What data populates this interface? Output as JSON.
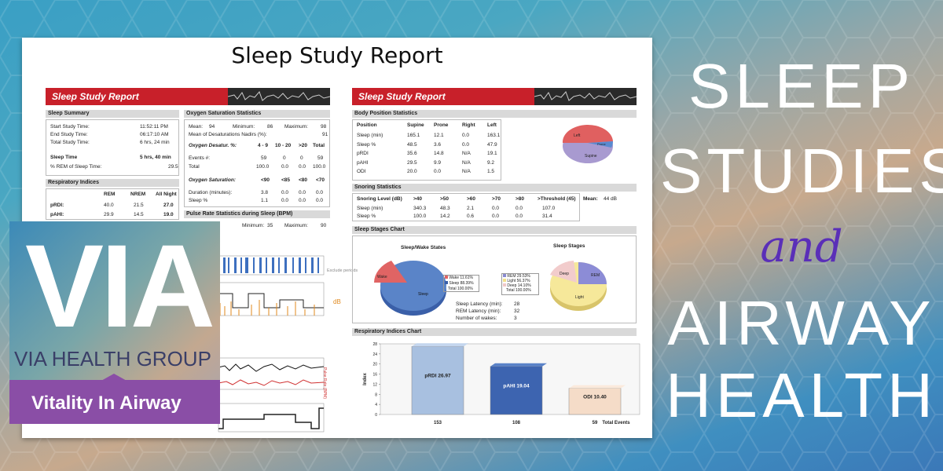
{
  "report": {
    "title": "Sleep Study Report",
    "banner": "Sleep Study Report",
    "left": {
      "sleep_summary": {
        "heading": "Sleep Summary",
        "rows": [
          {
            "label": "Start Study Time:",
            "value": "11:52:11 PM"
          },
          {
            "label": "End Study Time:",
            "value": "06:17:10 AM"
          },
          {
            "label": "Total Study Time:",
            "value": "6 hrs, 24 min"
          }
        ],
        "sleep_time_label": "Sleep Time",
        "sleep_time_value": "5 hrs, 40 min",
        "rem_label": "% REM of Sleep Time:",
        "rem_value": "29.5"
      },
      "respiratory": {
        "heading": "Respiratory Indices",
        "cols": [
          "REM",
          "NREM",
          "All Night"
        ],
        "rows": [
          {
            "label": "pRDI:",
            "values": [
              "40.0",
              "21.5",
              "27.0"
            ]
          },
          {
            "label": "pAHI:",
            "values": [
              "29.9",
              "14.5",
              "19.0"
            ]
          }
        ]
      },
      "oxygen": {
        "heading": "Oxygen Saturation Statistics",
        "mean_label": "Mean:",
        "mean": "94",
        "min_label": "Minimum:",
        "min": "86",
        "max_label": "Maximum:",
        "max": "98",
        "nadir_label": "Mean of Desaturations Nadirs (%):",
        "nadir": "91",
        "desat_label": "Oxygen Desatur. %:",
        "desat_cols": [
          "4 - 9",
          "10 - 20",
          ">20",
          "Total"
        ],
        "desat_rows": [
          {
            "label": "Events #:",
            "values": [
              "59",
              "0",
              "0",
              "59"
            ]
          },
          {
            "label": "Total",
            "values": [
              "100.0",
              "0.0",
              "0.0",
              "100.0"
            ]
          }
        ],
        "sat_label": "Oxygen Saturation:",
        "sat_cols": [
          "<90",
          "<85",
          "<80",
          "<70"
        ],
        "sat_rows": [
          {
            "label": "Duration (minutes):",
            "values": [
              "3.8",
              "0.0",
              "0.0",
              "0.0"
            ]
          },
          {
            "label": "Sleep %",
            "values": [
              "1.1",
              "0.0",
              "0.0",
              "0.0"
            ]
          }
        ]
      },
      "pulse": {
        "heading": "Pulse Rate Statistics during Sleep (BPM)",
        "min_label": "Minimum:",
        "min": "35",
        "max_label": "Maximum:",
        "max": "90"
      },
      "trace_labels": {
        "exclude": "Exclude periods",
        "db": "dB",
        "pulse": "Pulse Rate (BPM)"
      }
    },
    "right": {
      "body_position": {
        "heading": "Body Position Statistics",
        "cols": [
          "Position",
          "Supine",
          "Prone",
          "Right",
          "Left"
        ],
        "rows": [
          {
            "label": "Sleep (min)",
            "values": [
              "165.1",
              "12.1",
              "0.0",
              "163.1"
            ]
          },
          {
            "label": "Sleep %",
            "values": [
              "48.5",
              "3.6",
              "0.0",
              "47.9"
            ]
          },
          {
            "label": "pRDI",
            "values": [
              "35.6",
              "14.8",
              "N/A",
              "19.1"
            ]
          },
          {
            "label": "pAHI",
            "values": [
              "29.5",
              "9.9",
              "N/A",
              "9.2"
            ]
          },
          {
            "label": "ODI",
            "values": [
              "20.0",
              "0.0",
              "N/A",
              "1.5"
            ]
          }
        ],
        "pie_labels": [
          "Left",
          "Prone",
          "Supine"
        ]
      },
      "snoring": {
        "heading": "Snoring Statistics",
        "cols": [
          "Snoring Level (dB)",
          ">40",
          ">50",
          ">60",
          ">70",
          ">80",
          ">Threshold (45)"
        ],
        "mean_label": "Mean:",
        "mean": "44 dB",
        "rows": [
          {
            "label": "Sleep (min)",
            "values": [
              "340.3",
              "48.3",
              "2.1",
              "0.0",
              "0.0",
              "107.0"
            ]
          },
          {
            "label": "Sleep %",
            "values": [
              "100.0",
              "14.2",
              "0.6",
              "0.0",
              "0.0",
              "31.4"
            ]
          }
        ]
      },
      "stages": {
        "heading": "Sleep Stages Chart",
        "wake_title": "Sleep/Wake States",
        "stages_title": "Sleep Stages",
        "wake_legend": [
          {
            "label": "Wake",
            "value": "11.61%"
          },
          {
            "label": "Sleep",
            "value": "88.39%"
          },
          {
            "label": "Total",
            "value": "100.00%"
          }
        ],
        "stage_legend": [
          {
            "label": "REM",
            "value": "29.53%"
          },
          {
            "label": "Light",
            "value": "56.37%"
          },
          {
            "label": "Deep",
            "value": "14.10%"
          },
          {
            "label": "Total",
            "value": "100.00%"
          }
        ],
        "latency": [
          {
            "label": "Sleep Latency (min):",
            "value": "28"
          },
          {
            "label": "REM Latency (min):",
            "value": "32"
          },
          {
            "label": "Number of wakes:",
            "value": "3"
          }
        ],
        "pie_labels": {
          "wake": "Wake",
          "sleep": "Sleep",
          "rem": "REM",
          "deep": "Deep",
          "light": "Light"
        }
      },
      "resp_chart": {
        "heading": "Respiratory Indices Chart",
        "ylabel": "Index",
        "yticks": [
          "28",
          "24",
          "20",
          "16",
          "12",
          "8",
          "4",
          "0"
        ],
        "total_label": "Total Events"
      }
    }
  },
  "chart_data": {
    "type": "bar",
    "categories": [
      "pRDI",
      "pAHI",
      "ODI"
    ],
    "values": [
      26.97,
      19.04,
      10.4
    ],
    "bar_labels": [
      "pRDI 26.97",
      "pAHI 19.04",
      "ODI 10.40"
    ],
    "events": [
      "153",
      "108",
      "59"
    ],
    "ylabel": "Index",
    "ylim": [
      0,
      28
    ]
  },
  "logo": {
    "mark": "VIA",
    "name": "VIA HEALTH GROUP",
    "tagline": "Vitality In Airway"
  },
  "headline": {
    "line1": "SLEEP",
    "line2": "STUDIES",
    "and": "and",
    "line3": "AIRWAY",
    "line4": "HEALTH"
  },
  "colors": {
    "banner": "#c8202a",
    "and_text": "#5a2fb8",
    "logo_band": "#8a4ea6"
  }
}
